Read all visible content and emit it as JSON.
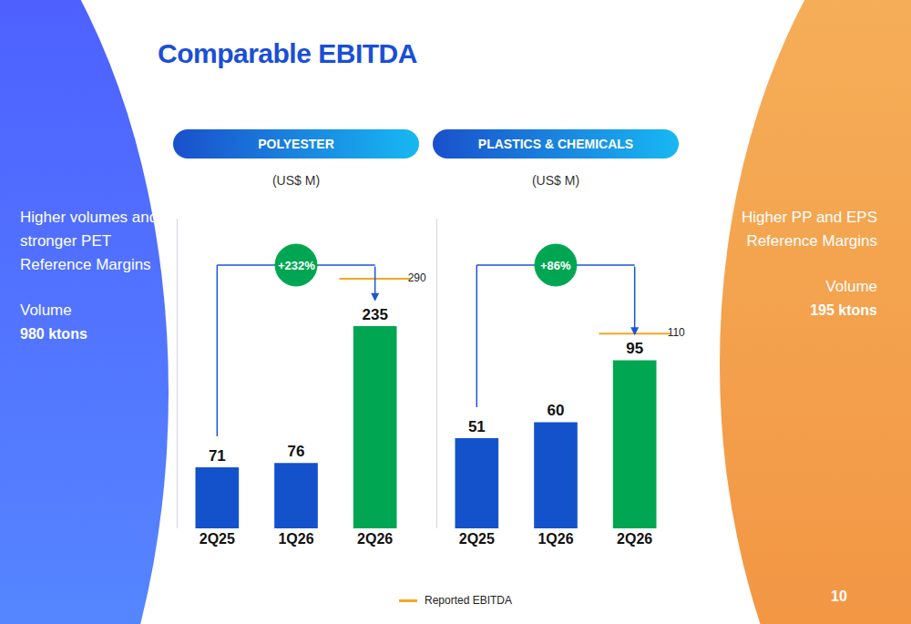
{
  "title": "Comparable EBITDA",
  "page_number": "10",
  "legend": "bottom",
  "chart_data": [
    {
      "type": "bar",
      "title": "POLYESTER",
      "subtitle": "(US$ M)",
      "categories": [
        "2Q25",
        "1Q26",
        "2Q26"
      ],
      "series": [
        {
          "type": "bar",
          "colors": [
            "#1452cc",
            "#1452cc",
            "#00a651"
          ],
          "values": [
            71,
            76,
            235
          ],
          "data_labels": true
        },
        {
          "name": "Reported EBITDA",
          "type": "scatter",
          "marker": "dash",
          "color": "#f5a623",
          "values": [
            null,
            null,
            290
          ],
          "data_labels": true
        }
      ],
      "ylim": [
        0,
        360
      ],
      "tick_labels": "x",
      "grid": false,
      "annotations": [
        {
          "text": "+232%",
          "from": "2Q25",
          "to": "2Q26"
        }
      ],
      "side_note": {
        "text": "Higher volumes and stronger PET Reference Margins",
        "label": "Volume",
        "value": "980 ktons"
      }
    },
    {
      "type": "bar",
      "title": "PLASTICS & CHEMICALS",
      "subtitle": "(US$ M)",
      "categories": [
        "2Q25",
        "1Q26",
        "2Q26"
      ],
      "series": [
        {
          "type": "bar",
          "colors": [
            "#1452cc",
            "#1452cc",
            "#00a651"
          ],
          "values": [
            51,
            60,
            95
          ],
          "data_labels": true
        },
        {
          "name": "Reported EBITDA",
          "type": "scatter",
          "marker": "dash",
          "color": "#f5a623",
          "values": [
            null,
            null,
            110
          ],
          "data_labels": true
        }
      ],
      "ylim": [
        0,
        175
      ],
      "tick_labels": "x",
      "grid": false,
      "annotations": [
        {
          "text": "+86%",
          "from": "2Q25",
          "to": "2Q26"
        }
      ],
      "side_note": {
        "text": "Higher PP and EPS Reference Margins",
        "label": "Volume",
        "value": "195 ktons"
      }
    }
  ]
}
